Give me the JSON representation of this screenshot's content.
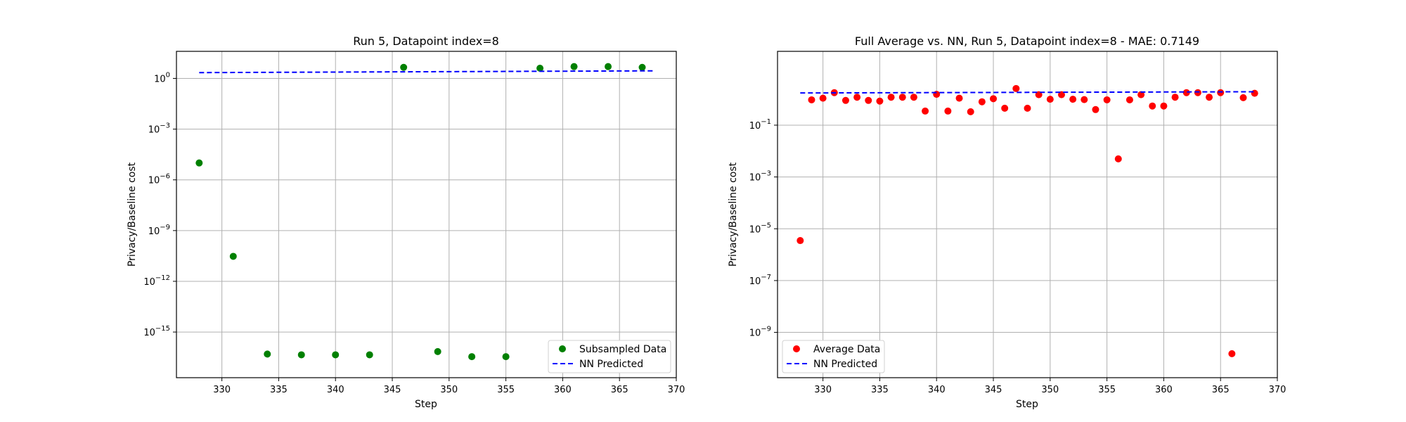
{
  "chart_data": [
    {
      "type": "scatter",
      "title": "Run 5, Datapoint index=8",
      "xlabel": "Step",
      "ylabel": "Privacy/Baseline cost",
      "xlim": [
        326,
        370
      ],
      "x_ticks": [
        330,
        335,
        340,
        345,
        350,
        355,
        360,
        365,
        370
      ],
      "y_scale": "log",
      "ylim_exp": [
        -17.7,
        1.6
      ],
      "y_ticks": [
        {
          "exp": 0,
          "label": "10^0"
        },
        {
          "exp": -3,
          "label": "10^-3"
        },
        {
          "exp": -6,
          "label": "10^-6"
        },
        {
          "exp": -9,
          "label": "10^-9"
        },
        {
          "exp": -12,
          "label": "10^-12"
        },
        {
          "exp": -15,
          "label": "10^-15"
        }
      ],
      "grid": true,
      "legend_position": "lower-right",
      "series": [
        {
          "name": "Subsampled Data",
          "kind": "scatter",
          "color": "#008000",
          "x": [
            328,
            331,
            334,
            337,
            340,
            343,
            346,
            349,
            352,
            355,
            358,
            361,
            364,
            367
          ],
          "y": [
            1e-05,
            3e-11,
            5e-17,
            4.5e-17,
            4.5e-17,
            4.5e-17,
            4.5,
            7e-17,
            3.5e-17,
            3.5e-17,
            4,
            5,
            5,
            4.5
          ]
        },
        {
          "name": "NN Predicted",
          "kind": "dashed-line",
          "color": "#0000ff",
          "x": [
            328,
            368
          ],
          "y": [
            2.2,
            2.8
          ]
        }
      ]
    },
    {
      "type": "scatter",
      "title": "Full Average vs. NN, Run 5, Datapoint index=8 - MAE: 0.7149",
      "xlabel": "Step",
      "ylabel": "Privacy/Baseline cost",
      "xlim": [
        326,
        370
      ],
      "x_ticks": [
        330,
        335,
        340,
        345,
        350,
        355,
        360,
        365,
        370
      ],
      "y_scale": "log",
      "ylim_exp": [
        -10.75,
        1.85
      ],
      "y_ticks": [
        {
          "exp": -1,
          "label": "10^-1"
        },
        {
          "exp": -3,
          "label": "10^-3"
        },
        {
          "exp": -5,
          "label": "10^-5"
        },
        {
          "exp": -7,
          "label": "10^-7"
        },
        {
          "exp": -9,
          "label": "10^-9"
        }
      ],
      "grid": true,
      "legend_position": "lower-left",
      "series": [
        {
          "name": "Average Data",
          "kind": "scatter",
          "color": "#ff0000",
          "x": [
            328,
            329,
            330,
            331,
            332,
            333,
            334,
            335,
            336,
            337,
            338,
            339,
            340,
            341,
            342,
            343,
            344,
            345,
            346,
            347,
            348,
            349,
            350,
            351,
            352,
            353,
            354,
            355,
            356,
            357,
            358,
            359,
            360,
            361,
            362,
            363,
            364,
            365,
            366,
            367,
            368
          ],
          "y": [
            3.5e-06,
            0.95,
            1.1,
            1.8,
            0.9,
            1.2,
            0.9,
            0.85,
            1.2,
            1.2,
            1.2,
            0.35,
            1.55,
            0.35,
            1.1,
            0.33,
            0.8,
            1.05,
            0.45,
            2.6,
            0.45,
            1.5,
            1.0,
            1.5,
            1.0,
            0.97,
            0.4,
            0.95,
            0.005,
            0.95,
            1.5,
            0.55,
            0.55,
            1.2,
            1.8,
            1.8,
            1.2,
            1.8,
            1.5e-10,
            1.15,
            1.7
          ]
        },
        {
          "name": "NN Predicted",
          "kind": "dashed-line",
          "color": "#0000ff",
          "x": [
            328,
            368
          ],
          "y": [
            1.75,
            1.95
          ]
        }
      ]
    }
  ]
}
